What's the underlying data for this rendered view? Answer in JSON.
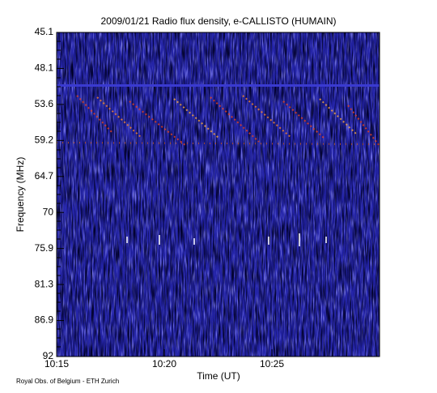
{
  "chart_data": {
    "type": "spectrogram",
    "title": "2009/01/21  Radio flux density, e-CALLISTO (HUMAIN)",
    "x_label": "Time (UT)",
    "y_label": "Frequency (MHz)",
    "footer": "Royal Obs. of Belgium - ETH Zurich",
    "xticks": [
      "10:15",
      "10:20",
      "10:25"
    ],
    "yticks": [
      45.1,
      48.1,
      53.6,
      59.2,
      64.7,
      70.0,
      75.9,
      81.3,
      86.9,
      92.0
    ],
    "ylim": [
      45.1,
      92.0
    ]
  }
}
